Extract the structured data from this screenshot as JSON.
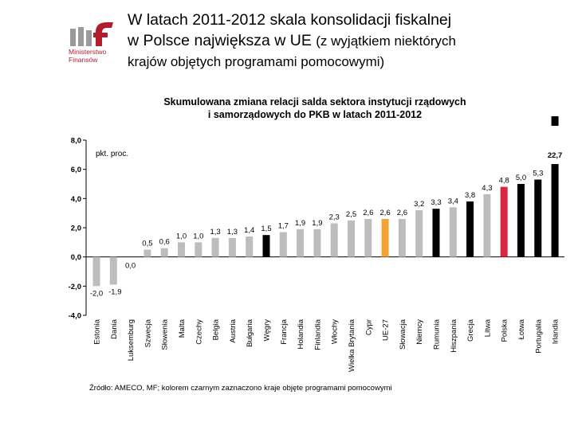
{
  "heading": {
    "line_main": "W latach 2011-2012 skala konsolidacji fiskalnej",
    "line_second_main": "w Polsce największa w UE",
    "line_second_note": "(z wyjątkiem niektórych",
    "line_third": "krajów objętych programami pomocowymi)"
  },
  "logo": {
    "line1": "Ministerstwo",
    "line2": "Finansów",
    "icon": "mf-logo"
  },
  "colors": {
    "grey": "#bdbdbd",
    "black": "#000000",
    "poland": "#d7263d",
    "eu27": "#f4a233",
    "logo_red": "#b01e2e",
    "logo_grey": "#9a9a9a"
  },
  "source_note": "Źródło: AMECO, MF; kolorem czarnym zaznaczono kraje objęte programami pomocowymi",
  "chart_data": {
    "type": "bar",
    "title_line1": "Skumulowana zmiana relacji salda sektora instytucji rządowych",
    "title_line2": "i samorządowych do PKB w latach 2011-2012",
    "unit_label": "pkt. proc.",
    "ylim": [
      -4,
      8
    ],
    "y_ticks": [
      "8,0",
      "6,0",
      "4,0",
      "2,0",
      "0,0",
      "-2,0",
      "-4,0"
    ],
    "categories": [
      "Estonia",
      "Dania",
      "Luksemburg",
      "Szwecja",
      "Słowenia",
      "Malta",
      "Czechy",
      "Belgia",
      "Austria",
      "Bułgaria",
      "Węgry",
      "Francja",
      "Holandia",
      "Finlandia",
      "Włochy",
      "Wielka Brytania",
      "Cypr",
      "UE-27",
      "Słowacja",
      "Niemcy",
      "Rumunia",
      "Hiszpania",
      "Grecja",
      "Litwa",
      "Polska",
      "Łotwa",
      "Portugalia",
      "Irlandia"
    ],
    "values": [
      -2.0,
      -1.9,
      0.0,
      0.5,
      0.6,
      1.0,
      1.0,
      1.3,
      1.3,
      1.4,
      1.5,
      1.7,
      1.9,
      1.9,
      2.3,
      2.5,
      2.6,
      2.6,
      2.6,
      3.2,
      3.3,
      3.4,
      3.8,
      4.3,
      4.8,
      5.0,
      5.3,
      22.7
    ],
    "value_labels": [
      "-2,0",
      "-1,9",
      "0,0",
      "0,5",
      "0,6",
      "1,0",
      "1,0",
      "1,3",
      "1,3",
      "1,4",
      "1,5",
      "1,7",
      "1,9",
      "1,9",
      "2,3",
      "2,5",
      "2,6",
      "2,6",
      "2,6",
      "3,2",
      "3,3",
      "3,4",
      "3,8",
      "4,3",
      "4,8",
      "5,0",
      "5,3",
      "22,7"
    ],
    "color_groups": [
      "grey",
      "grey",
      "grey",
      "grey",
      "grey",
      "grey",
      "grey",
      "grey",
      "grey",
      "grey",
      "black",
      "grey",
      "grey",
      "grey",
      "grey",
      "grey",
      "grey",
      "eu27",
      "grey",
      "grey",
      "black",
      "grey",
      "black",
      "grey",
      "poland",
      "black",
      "black",
      "black"
    ],
    "grid": false
  }
}
